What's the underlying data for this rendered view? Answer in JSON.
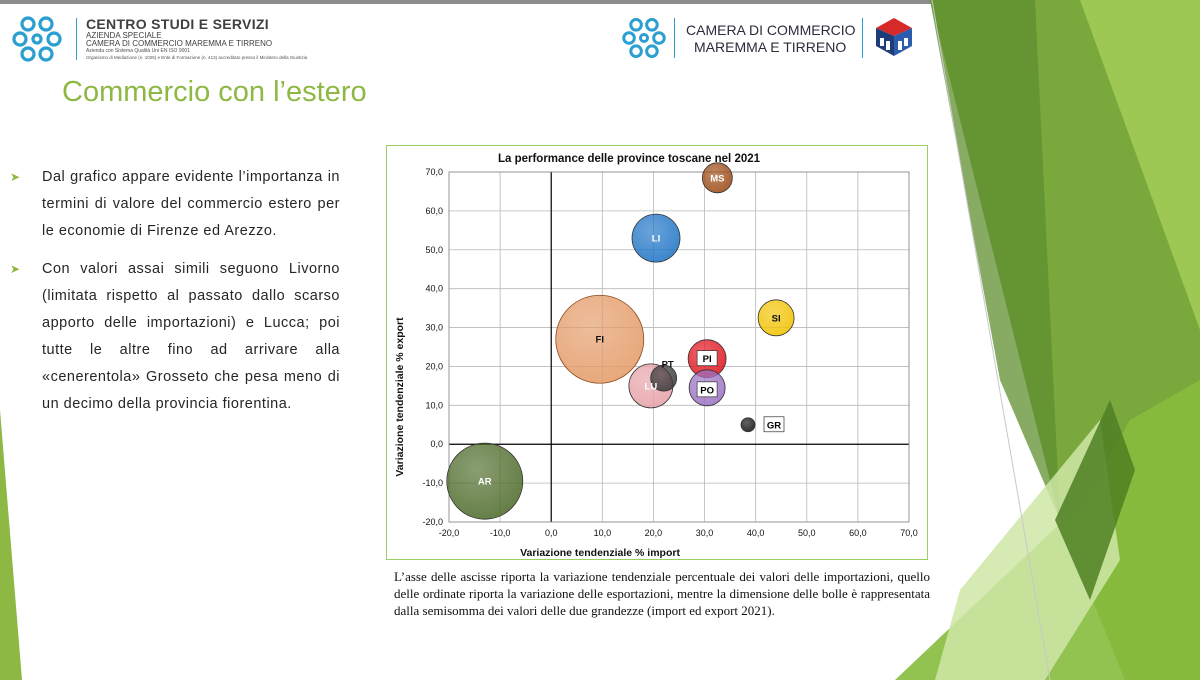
{
  "header": {
    "left_logo": {
      "title": "CENTRO STUDI E SERVIZI",
      "line2": "AZIENDA SPECIALE",
      "line3": "CAMERA DI COMMERCIO MAREMMA E TIRRENO",
      "line4": "Azienda con Sistema Qualità Uni EN ISO 9001",
      "line5": "Organismo di Mediazione (n. 1025) e Ente di Formazione (n. 413) accreditato presso il Ministero della Giustizia"
    },
    "right_logo": {
      "line1": "CAMERA DI COMMERCIO",
      "line2": "MAREMMA E TIRRENO"
    }
  },
  "page_title": "Commercio con l’estero",
  "bullets": [
    "Dal grafico appare evidente l’importanza in termini di valore del commercio estero per le economie di Firenze ed Arezzo.",
    "Con valori assai simili seguono Livorno (limitata rispetto al passato dallo scarso apporto delle importazioni) e Lucca; poi tutte le altre fino ad arrivare alla «cenerentola» Grosseto che pesa meno di un decimo della provincia fiorentina."
  ],
  "caption": "L’asse delle ascisse riporta la variazione tendenziale percentuale dei valori delle importazioni, quello delle ordinate riporta la variazione delle esportazioni, mentre la dimensione delle bolle è rappresentata dalla semisomma dei valori delle due grandezze (import ed export 2021).",
  "colors": {
    "accent_green": "#8db843",
    "logo_blue": "#2a9fd0"
  },
  "chart_data": {
    "type": "scatter",
    "title": "La performance delle province toscane nel 2021",
    "xlabel": "Variazione tendenziale % import",
    "ylabel": "Variazione tendenziale % export",
    "xlim": [
      -20,
      70
    ],
    "ylim": [
      -20,
      70
    ],
    "x_ticks": [
      "-20,0",
      "-10,0",
      "0,0",
      "10,0",
      "20,0",
      "30,0",
      "40,0",
      "50,0",
      "60,0",
      "70,0"
    ],
    "y_ticks": [
      "70,0",
      "60,0",
      "50,0",
      "40,0",
      "30,0",
      "20,0",
      "10,0",
      "0,0",
      "-10,0",
      "-20,0"
    ],
    "grid": true,
    "points": [
      {
        "label": "AR",
        "x": -13,
        "y": -9.5,
        "size": 38,
        "color": "#4e6b2a"
      },
      {
        "label": "FI",
        "x": 9.5,
        "y": 27,
        "size": 44,
        "color": "#e49b68"
      },
      {
        "label": "LI",
        "x": 20.5,
        "y": 53,
        "size": 24,
        "color": "#1e74c6"
      },
      {
        "label": "MS",
        "x": 32.5,
        "y": 68.5,
        "size": 15,
        "color": "#9c4a14"
      },
      {
        "label": "SI",
        "x": 44,
        "y": 32.5,
        "size": 18,
        "color": "#f2c200"
      },
      {
        "label": "PI",
        "x": 30.5,
        "y": 22,
        "size": 19,
        "color": "#e0141d"
      },
      {
        "label": "PO",
        "x": 30.5,
        "y": 14.5,
        "size": 18,
        "color": "#9b72c4"
      },
      {
        "label": "LU",
        "x": 19.5,
        "y": 15,
        "size": 22,
        "color": "#e6a1a8"
      },
      {
        "label": "PT",
        "x": 22,
        "y": 17,
        "size": 13,
        "color": "#3a3a3a"
      },
      {
        "label": "GR",
        "x": 38.5,
        "y": 5,
        "size": 7,
        "color": "#111111"
      }
    ]
  }
}
